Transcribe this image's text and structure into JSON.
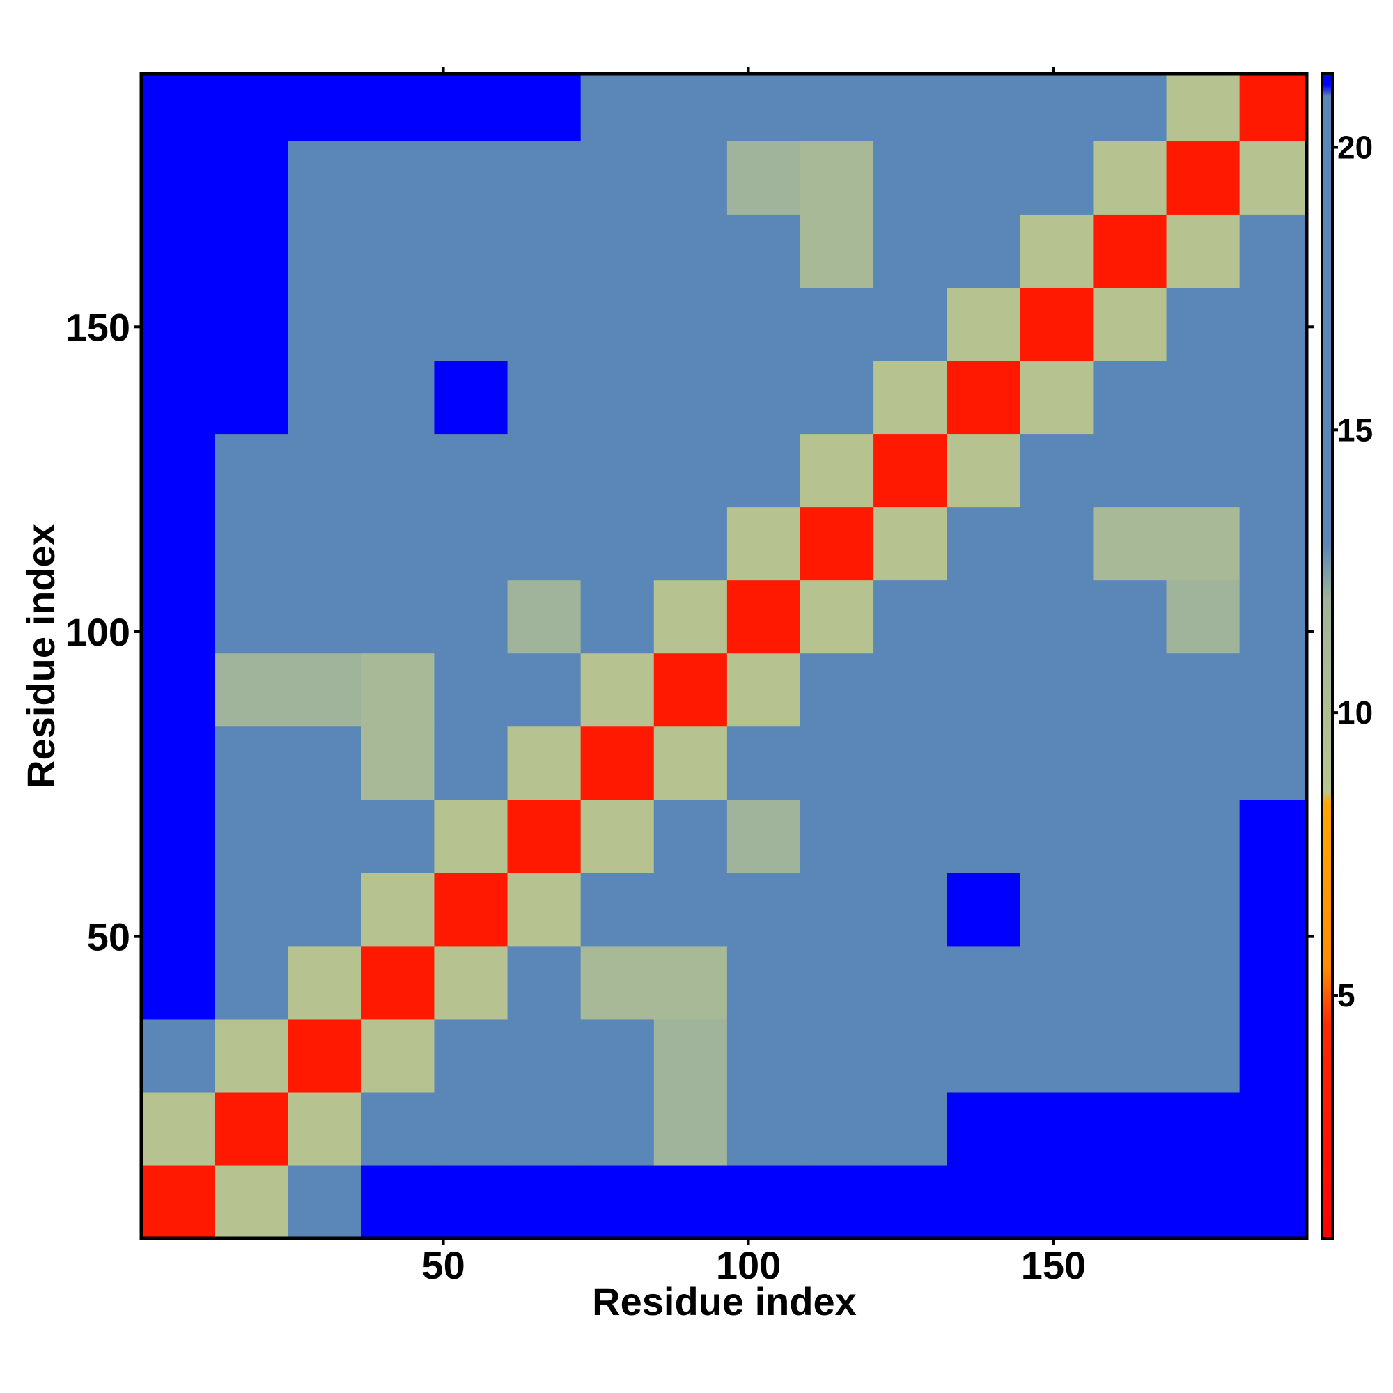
{
  "chart_data": {
    "type": "heatmap",
    "x_label": "Residue index",
    "y_label": "Residue index",
    "x": [
      6.5,
      18.5,
      30.5,
      42.5,
      54.5,
      66.5,
      78.5,
      90.5,
      102.5,
      114.5,
      126.5,
      138.5,
      150.5,
      162.5,
      174.5,
      186.5
    ],
    "y": [
      6.5,
      18.5,
      30.5,
      42.5,
      54.5,
      66.5,
      78.5,
      90.5,
      102.5,
      114.5,
      126.5,
      138.5,
      150.5,
      162.5,
      174.5,
      186.5
    ],
    "z": [
      [
        3,
        9,
        13,
        21.3,
        21.3,
        21.3,
        21.3,
        21.3,
        21.3,
        21.3,
        21.3,
        21.3,
        21.3,
        21.3,
        21.3,
        21.3
      ],
      [
        9,
        3,
        9,
        13,
        16,
        16,
        16,
        12,
        16,
        16,
        16,
        21.3,
        21.3,
        21.3,
        21.3,
        21.3
      ],
      [
        13,
        9,
        3,
        9,
        13,
        16,
        16,
        12,
        16,
        16,
        16,
        16,
        16,
        16,
        16,
        21.3
      ],
      [
        21.3,
        13,
        9,
        3,
        9,
        13,
        11,
        11,
        16,
        16,
        16,
        16,
        16,
        16,
        16,
        21.3
      ],
      [
        21.3,
        16,
        13,
        9,
        3,
        9,
        13,
        16,
        16,
        16,
        16,
        21.3,
        16,
        16,
        16,
        21.3
      ],
      [
        21.3,
        16,
        16,
        13,
        9,
        3,
        9,
        13,
        12,
        16,
        13,
        16,
        16,
        16,
        16,
        21.3
      ],
      [
        21.3,
        16,
        16,
        11,
        13,
        9,
        3,
        9,
        13,
        16,
        16,
        16,
        16,
        16,
        16,
        16
      ],
      [
        21.3,
        12,
        12,
        11,
        16,
        13,
        9,
        3,
        9,
        13,
        16,
        16,
        16,
        16,
        16,
        16
      ],
      [
        21.3,
        16,
        16,
        16,
        16,
        12,
        13,
        9,
        3,
        9,
        13,
        16,
        16,
        16,
        12,
        16
      ],
      [
        21.3,
        16,
        16,
        16,
        16,
        16,
        16,
        13,
        9,
        3,
        9,
        13,
        16,
        11,
        11,
        16
      ],
      [
        21.3,
        16,
        16,
        16,
        16,
        13,
        16,
        16,
        13,
        9,
        3,
        9,
        13,
        16,
        16,
        16
      ],
      [
        21.3,
        21.3,
        16,
        16,
        21.3,
        16,
        16,
        16,
        16,
        13,
        9,
        3,
        9,
        13,
        16,
        16
      ],
      [
        21.3,
        21.3,
        16,
        16,
        16,
        16,
        16,
        16,
        16,
        16,
        13,
        9,
        3,
        9,
        13,
        16
      ],
      [
        21.3,
        21.3,
        16,
        16,
        16,
        16,
        16,
        16,
        16,
        11,
        16,
        13,
        9,
        3,
        9,
        13
      ],
      [
        21.3,
        21.3,
        16,
        16,
        16,
        16,
        16,
        16,
        12,
        11,
        16,
        16,
        13,
        9,
        3,
        9
      ],
      [
        21.3,
        21.3,
        21.3,
        21.3,
        21.3,
        21.3,
        16,
        16,
        16,
        16,
        16,
        16,
        16,
        13,
        9,
        3
      ]
    ],
    "xlim": [
      0.5,
      191.5
    ],
    "ylim": [
      0.5,
      191.5
    ],
    "xticks": [
      50,
      100,
      150
    ],
    "yticks": [
      50,
      100,
      150
    ],
    "zlim": [
      0.7,
      21.3
    ],
    "zticks": [
      5,
      10,
      15,
      20
    ],
    "colorscale": [
      [
        0.7,
        "#ff0000"
      ],
      [
        4.5,
        "#ff2a00"
      ],
      [
        5.5,
        "#ff8c00"
      ],
      [
        8.4,
        "#ffa500"
      ],
      [
        8.6,
        "#b9c48e"
      ],
      [
        12,
        "#9fb49a"
      ],
      [
        13,
        "#5a86b8"
      ],
      [
        20.9,
        "#5a86b8"
      ],
      [
        21.1,
        "#0000ff"
      ],
      [
        21.3,
        "#0000ff"
      ]
    ]
  }
}
